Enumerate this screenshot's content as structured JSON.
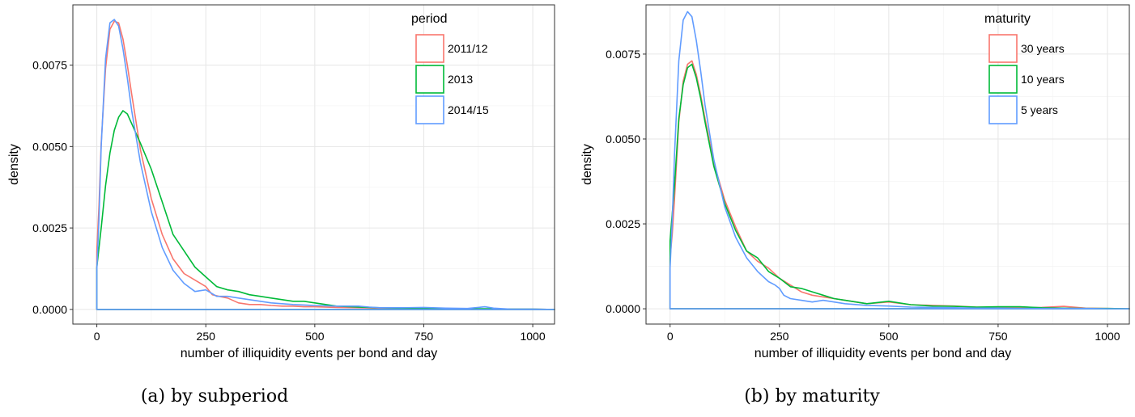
{
  "chart_data": [
    {
      "type": "line",
      "panel_caption": "(a) by subperiod",
      "xlabel": "number of illiquidity events per bond and day",
      "ylabel": "density",
      "xlim": [
        -55,
        1050
      ],
      "ylim": [
        -0.00045,
        0.00935
      ],
      "x_ticks": [
        0,
        250,
        500,
        750,
        1000
      ],
      "y_ticks": [
        0,
        0.0025,
        0.005,
        0.0075
      ],
      "y_tick_labels": [
        "0.0000",
        "0.0025",
        "0.0050",
        "0.0075"
      ],
      "grid": true,
      "legend_title": "period",
      "legend_position": "top-right",
      "series": [
        {
          "name": "2011/12",
          "color": "#F8766D",
          "x": [
            0,
            5,
            10,
            20,
            30,
            40,
            50,
            60,
            70,
            80,
            100,
            125,
            150,
            175,
            200,
            225,
            250,
            265,
            280,
            300,
            325,
            350,
            375,
            400,
            425,
            450,
            475,
            500,
            550,
            600,
            650,
            700,
            750,
            800,
            850,
            900,
            950,
            1000,
            1050
          ],
          "y": [
            0.0018,
            0.0032,
            0.0051,
            0.0074,
            0.0086,
            0.00885,
            0.0088,
            0.0083,
            0.0075,
            0.0066,
            0.0049,
            0.0034,
            0.0023,
            0.00155,
            0.0011,
            0.0009,
            0.0007,
            0.00045,
            0.0004,
            0.00035,
            0.0002,
            0.00015,
            0.00015,
            0.00012,
            0.0001,
            0.0001,
            8e-05,
            8e-05,
            6e-05,
            5e-05,
            4e-05,
            3e-05,
            3e-05,
            2e-05,
            2e-05,
            1e-05,
            1e-05,
            1e-05,
            0.0
          ]
        },
        {
          "name": "2013",
          "color": "#00BA38",
          "x": [
            0,
            10,
            20,
            30,
            40,
            50,
            60,
            70,
            80,
            100,
            125,
            150,
            175,
            200,
            225,
            250,
            275,
            300,
            325,
            350,
            375,
            400,
            425,
            450,
            475,
            500,
            525,
            550,
            600,
            650,
            700,
            750,
            800,
            850,
            900,
            950,
            1000,
            1050
          ],
          "y": [
            0.0013,
            0.0025,
            0.0038,
            0.0048,
            0.0055,
            0.0059,
            0.0061,
            0.006,
            0.0057,
            0.0051,
            0.0043,
            0.0033,
            0.0023,
            0.0018,
            0.0013,
            0.001,
            0.0007,
            0.0006,
            0.00055,
            0.00045,
            0.0004,
            0.00035,
            0.0003,
            0.00025,
            0.00025,
            0.0002,
            0.00015,
            0.0001,
            7e-05,
            5e-05,
            4e-05,
            3e-05,
            3e-05,
            2e-05,
            2e-05,
            1e-05,
            1e-05,
            0.0
          ]
        },
        {
          "name": "2014/15",
          "color": "#619CFF",
          "x": [
            0,
            5,
            10,
            20,
            30,
            40,
            50,
            60,
            70,
            80,
            100,
            125,
            150,
            175,
            200,
            225,
            250,
            275,
            300,
            325,
            350,
            375,
            400,
            450,
            500,
            550,
            600,
            625,
            650,
            700,
            750,
            800,
            850,
            875,
            890,
            910,
            950,
            1000,
            1050
          ],
          "y": [
            0.0012,
            0.0028,
            0.005,
            0.0077,
            0.0088,
            0.0089,
            0.0087,
            0.008,
            0.0071,
            0.0061,
            0.0045,
            0.003,
            0.0019,
            0.0012,
            0.0008,
            0.00055,
            0.0006,
            0.0004,
            0.0004,
            0.00035,
            0.0003,
            0.00025,
            0.0002,
            0.00015,
            0.00012,
            0.0001,
            0.0001,
            7e-05,
            5e-05,
            5e-05,
            6e-05,
            4e-05,
            3e-05,
            6e-05,
            8e-05,
            4e-05,
            1e-05,
            1e-05,
            0.0
          ]
        }
      ]
    },
    {
      "type": "line",
      "panel_caption": "(b) by maturity",
      "xlabel": "number of illiquidity events per bond and day",
      "ylabel": "density",
      "xlim": [
        -55,
        1050
      ],
      "ylim": [
        -0.00045,
        0.00895
      ],
      "x_ticks": [
        0,
        250,
        500,
        750,
        1000
      ],
      "y_ticks": [
        0,
        0.0025,
        0.005,
        0.0075
      ],
      "y_tick_labels": [
        "0.0000",
        "0.0025",
        "0.0050",
        "0.0075"
      ],
      "grid": true,
      "legend_title": "maturity",
      "legend_position": "top-right",
      "series": [
        {
          "name": "30 years",
          "color": "#F8766D",
          "x": [
            0,
            5,
            10,
            20,
            30,
            40,
            50,
            60,
            70,
            80,
            100,
            125,
            150,
            175,
            200,
            225,
            250,
            275,
            300,
            325,
            350,
            375,
            400,
            450,
            500,
            550,
            600,
            650,
            700,
            750,
            800,
            850,
            900,
            950,
            1000,
            1050
          ],
          "y": [
            0.0015,
            0.0022,
            0.0032,
            0.0055,
            0.0067,
            0.0072,
            0.0073,
            0.0069,
            0.0063,
            0.0056,
            0.0043,
            0.0032,
            0.0024,
            0.0017,
            0.0014,
            0.0012,
            0.0009,
            0.0007,
            0.0005,
            0.0004,
            0.00035,
            0.0003,
            0.00025,
            0.00015,
            0.0002,
            0.00012,
            0.0001,
            8e-05,
            5e-05,
            4e-05,
            3e-05,
            4e-05,
            7e-05,
            2e-05,
            1e-05,
            0.0
          ]
        },
        {
          "name": "10 years",
          "color": "#00BA38",
          "x": [
            0,
            5,
            10,
            20,
            30,
            40,
            50,
            60,
            70,
            80,
            100,
            125,
            150,
            175,
            200,
            225,
            250,
            275,
            300,
            325,
            350,
            375,
            400,
            450,
            500,
            550,
            600,
            650,
            700,
            750,
            800,
            850,
            900,
            950,
            1000,
            1050
          ],
          "y": [
            0.002,
            0.0028,
            0.0036,
            0.0056,
            0.0066,
            0.0071,
            0.0072,
            0.0068,
            0.0062,
            0.0055,
            0.0042,
            0.0031,
            0.0023,
            0.0017,
            0.0015,
            0.0011,
            0.0009,
            0.00065,
            0.0006,
            0.0005,
            0.0004,
            0.0003,
            0.00025,
            0.00015,
            0.00022,
            0.00012,
            8e-05,
            7e-05,
            5e-05,
            6e-05,
            6e-05,
            3e-05,
            2e-05,
            1e-05,
            1e-05,
            0.0
          ]
        },
        {
          "name": "5 years",
          "color": "#619CFF",
          "x": [
            0,
            5,
            10,
            20,
            30,
            40,
            50,
            60,
            70,
            80,
            100,
            125,
            150,
            175,
            200,
            225,
            240,
            250,
            260,
            275,
            300,
            325,
            350,
            375,
            400,
            450,
            500,
            550,
            600,
            650,
            700,
            750,
            800,
            850,
            900,
            950,
            1000,
            1050
          ],
          "y": [
            0.0012,
            0.0026,
            0.0045,
            0.0073,
            0.0085,
            0.00875,
            0.0086,
            0.0079,
            0.007,
            0.006,
            0.0044,
            0.003,
            0.0021,
            0.0015,
            0.0011,
            0.0008,
            0.0007,
            0.0006,
            0.0004,
            0.0003,
            0.00025,
            0.0002,
            0.00025,
            0.0002,
            0.00015,
            0.0001,
            8e-05,
            5e-05,
            4e-05,
            3e-05,
            2e-05,
            2e-05,
            1e-05,
            1e-05,
            1e-05,
            1e-05,
            0.0,
            0.0
          ]
        }
      ]
    }
  ]
}
